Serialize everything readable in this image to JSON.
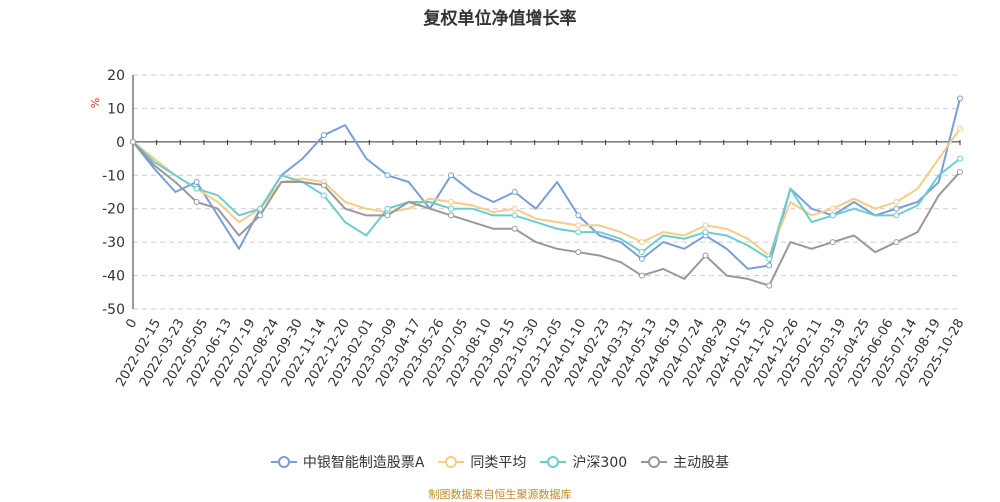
{
  "chart_data": {
    "type": "line",
    "title": "复权单位净值增长率",
    "ylabel": "%",
    "ylim": [
      -50,
      20
    ],
    "yticks": [
      20,
      10,
      0,
      -10,
      -20,
      -30,
      -40,
      -50
    ],
    "x_tick_labels": [
      "0",
      "2022-02-15",
      "2022-03-23",
      "2022-05-05",
      "2022-06-13",
      "2022-07-19",
      "2022-08-24",
      "2022-09-30",
      "2022-11-14",
      "2022-12-20",
      "2023-02-01",
      "2023-03-09",
      "2023-04-17",
      "2023-05-26",
      "2023-07-05",
      "2023-08-10",
      "2023-09-15",
      "2023-10-30",
      "2023-12-05",
      "2024-01-10",
      "2024-02-23",
      "2024-03-31",
      "2024-05-13",
      "2024-06-19",
      "2024-07-24",
      "2024-08-29",
      "2024-10-15",
      "2024-11-20",
      "2024-12-26",
      "2025-02-11",
      "2025-03-19",
      "2025-04-25",
      "2025-06-06",
      "2025-07-14",
      "2025-08-19",
      "2025-10-28"
    ],
    "series": [
      {
        "name": "中银智能制造股票A",
        "color": "#7b9ed6",
        "values": [
          0,
          -8,
          -15,
          -12,
          -22,
          -32,
          -20,
          -10,
          -5,
          2,
          5,
          -5,
          -10,
          -12,
          -20,
          -10,
          -15,
          -18,
          -15,
          -20,
          -12,
          -22,
          -28,
          -30,
          -35,
          -30,
          -32,
          -28,
          -32,
          -38,
          -37,
          -14,
          -20,
          -22,
          -18,
          -22,
          -20,
          -18,
          -12,
          13
        ]
      },
      {
        "name": "同类平均",
        "color": "#f6cc87",
        "values": [
          0,
          -5,
          -10,
          -14,
          -18,
          -24,
          -20,
          -12,
          -11,
          -12,
          -18,
          -20,
          -21,
          -20,
          -17,
          -18,
          -19,
          -21,
          -20,
          -23,
          -24,
          -25,
          -25,
          -27,
          -30,
          -27,
          -28,
          -25,
          -26,
          -29,
          -34,
          -18,
          -22,
          -20,
          -17,
          -20,
          -18,
          -14,
          -5,
          4
        ]
      },
      {
        "name": "沪深300",
        "color": "#6ccdd1",
        "values": [
          0,
          -6,
          -10,
          -14,
          -16,
          -22,
          -20,
          -10,
          -12,
          -16,
          -24,
          -28,
          -20,
          -18,
          -18,
          -20,
          -20,
          -22,
          -22,
          -24,
          -26,
          -27,
          -27,
          -29,
          -33,
          -28,
          -29,
          -27,
          -28,
          -31,
          -35,
          -14,
          -24,
          -22,
          -20,
          -22,
          -22,
          -19,
          -10,
          -5
        ]
      },
      {
        "name": "主动股基",
        "color": "#999999",
        "values": [
          0,
          -7,
          -12,
          -18,
          -20,
          -28,
          -22,
          -12,
          -12,
          -13,
          -20,
          -22,
          -22,
          -18,
          -20,
          -22,
          -24,
          -26,
          -26,
          -30,
          -32,
          -33,
          -34,
          -36,
          -40,
          -38,
          -41,
          -34,
          -40,
          -41,
          -43,
          -30,
          -32,
          -30,
          -28,
          -33,
          -30,
          -27,
          -16,
          -9
        ]
      }
    ]
  },
  "source_text": "制图数据来自恒生聚源数据库"
}
